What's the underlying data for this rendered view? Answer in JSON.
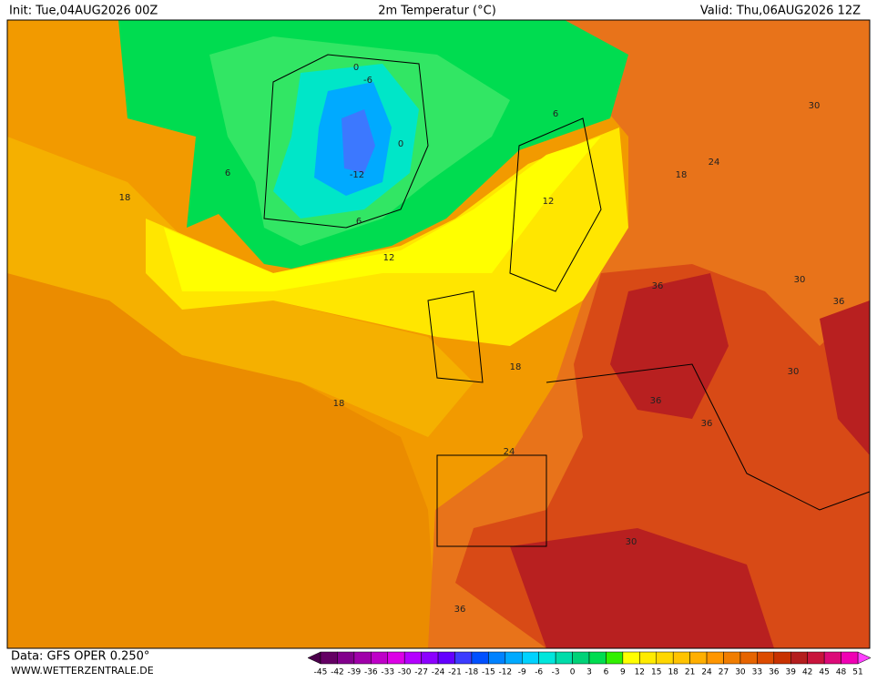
{
  "header": {
    "init": "Init: Tue,04AUG2026 00Z",
    "title": "2m Temperatur (°C)",
    "valid": "Valid: Thu,06AUG2026 12Z"
  },
  "map": {
    "contour_labels": [
      0,
      -6,
      -12,
      0,
      6,
      6,
      6,
      12,
      12,
      18,
      18,
      24,
      30,
      30,
      36,
      18,
      18,
      24,
      30,
      36,
      36,
      30,
      36,
      36
    ]
  },
  "footer": {
    "data": "Data: GFS OPER 0.250°",
    "site": "WWW.WETTERZENTRALE.DE"
  },
  "legend": {
    "ticks": [
      -45,
      -42,
      -39,
      -36,
      -33,
      -30,
      -27,
      -24,
      -21,
      -18,
      -15,
      -12,
      -9,
      -6,
      -3,
      0,
      3,
      6,
      9,
      12,
      15,
      18,
      21,
      24,
      27,
      30,
      33,
      36,
      39,
      42,
      45,
      48,
      51
    ],
    "under_color": "#4b004b",
    "over_color": "#ff40ff",
    "colors": [
      "#640064",
      "#82008c",
      "#a000aa",
      "#be00c8",
      "#dc00e6",
      "#b400ff",
      "#8c00ff",
      "#6400ff",
      "#3c3cff",
      "#0050ff",
      "#0082ff",
      "#00aaff",
      "#00d2ff",
      "#00e6dc",
      "#00dcaa",
      "#00d278",
      "#00dc50",
      "#32f000",
      "#ffff00",
      "#ffeb00",
      "#ffd700",
      "#ffc300",
      "#ffaf00",
      "#ff9600",
      "#f07d00",
      "#e66400",
      "#dc4b00",
      "#c83200",
      "#b41e1e",
      "#c8143c",
      "#dc0a78",
      "#f000b4"
    ]
  }
}
